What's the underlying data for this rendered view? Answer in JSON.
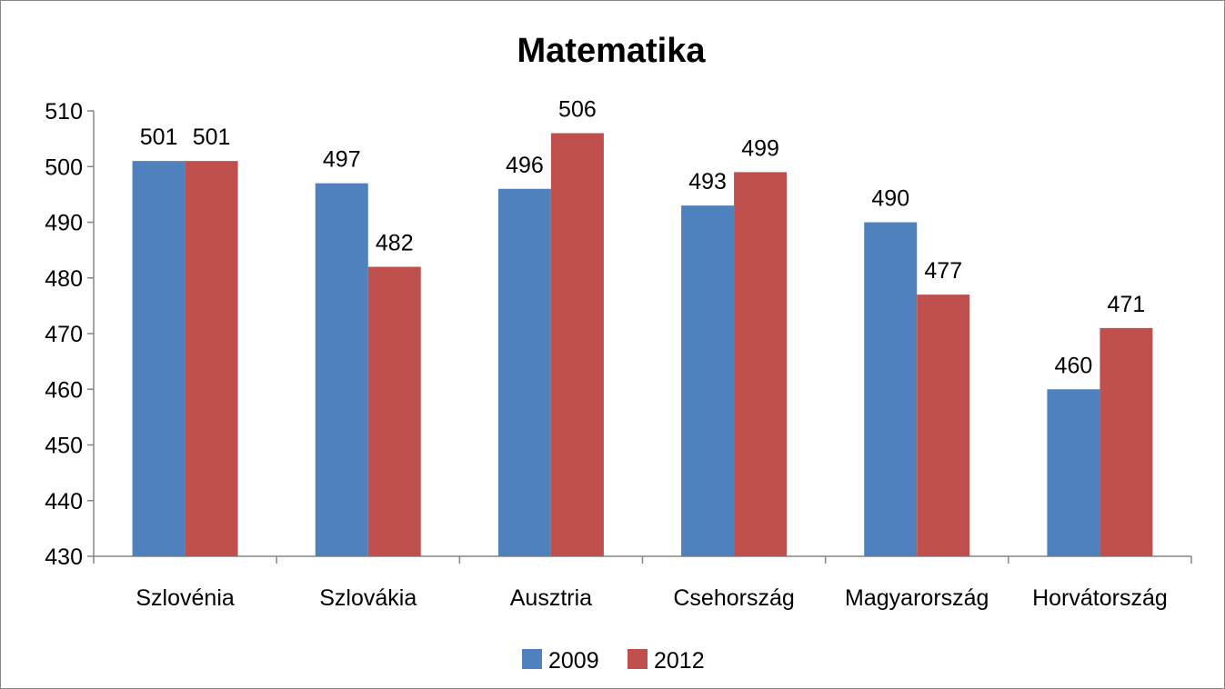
{
  "chart_data": {
    "type": "bar",
    "title": "Matematika",
    "xlabel": "",
    "ylabel": "",
    "categories": [
      "Szlovénia",
      "Szlovákia",
      "Ausztria",
      "Csehország",
      "Magyarország",
      "Horvátország"
    ],
    "series": [
      {
        "name": "2009",
        "color": "#4F81BD",
        "values": [
          501,
          497,
          496,
          493,
          490,
          460
        ]
      },
      {
        "name": "2012",
        "color": "#C0504D",
        "values": [
          501,
          482,
          506,
          499,
          477,
          471
        ]
      }
    ],
    "ylim": [
      430,
      510
    ],
    "yticks": [
      430,
      440,
      450,
      460,
      470,
      480,
      490,
      500,
      510
    ],
    "grid": false,
    "legend_position": "bottom",
    "data_labels": true
  }
}
